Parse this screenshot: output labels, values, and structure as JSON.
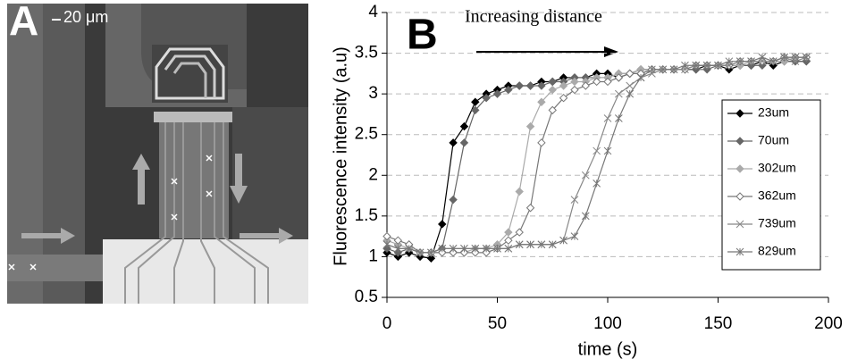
{
  "panel_a": {
    "label": "A",
    "scale_bar": "20 μm"
  },
  "chart_data": {
    "type": "line",
    "panel_label": "B",
    "annotation": "Increasing distance",
    "x_label": "time (s)",
    "y_label": "Fluorescence intensity (a.u)",
    "x": [
      0,
      5,
      10,
      15,
      20,
      25,
      30,
      35,
      40,
      45,
      50,
      55,
      60,
      65,
      70,
      75,
      80,
      85,
      90,
      95,
      100,
      105,
      110,
      115,
      120,
      125,
      130,
      135,
      140,
      145,
      150,
      155,
      160,
      165,
      170,
      175,
      180,
      185,
      190
    ],
    "series": [
      {
        "name": "23um",
        "color": "#000000",
        "marker": "diamond",
        "values": [
          1.05,
          1.0,
          1.05,
          1.0,
          0.98,
          1.4,
          2.4,
          2.6,
          2.9,
          3.0,
          3.05,
          3.1,
          3.1,
          3.1,
          3.15,
          3.15,
          3.2,
          3.2,
          3.2,
          3.25,
          3.25,
          3.2,
          3.25,
          3.3,
          3.3,
          3.3,
          3.3,
          3.3,
          3.3,
          3.35,
          3.35,
          3.3,
          3.35,
          3.35,
          3.4,
          3.35,
          3.4,
          3.4,
          3.4
        ]
      },
      {
        "name": "70um",
        "color": "#666666",
        "marker": "diamond",
        "values": [
          1.1,
          1.05,
          1.1,
          1.05,
          1.05,
          1.1,
          1.7,
          2.4,
          2.8,
          2.95,
          3.0,
          3.05,
          3.1,
          3.1,
          3.1,
          3.15,
          3.15,
          3.2,
          3.2,
          3.2,
          3.2,
          3.25,
          3.25,
          3.25,
          3.3,
          3.3,
          3.3,
          3.3,
          3.3,
          3.3,
          3.35,
          3.35,
          3.35,
          3.35,
          3.35,
          3.4,
          3.4,
          3.4,
          3.4
        ]
      },
      {
        "name": "302um",
        "color": "#aaaaaa",
        "marker": "diamond",
        "values": [
          1.2,
          1.15,
          1.1,
          1.05,
          1.05,
          1.05,
          1.05,
          1.05,
          1.1,
          1.1,
          1.15,
          1.3,
          1.8,
          2.6,
          2.9,
          3.05,
          3.1,
          3.15,
          3.15,
          3.2,
          3.2,
          3.25,
          3.25,
          3.3,
          3.3,
          3.3,
          3.3,
          3.3,
          3.35,
          3.35,
          3.35,
          3.35,
          3.35,
          3.4,
          3.4,
          3.4,
          3.4,
          3.45,
          3.45
        ]
      },
      {
        "name": "362um",
        "color": "#777777",
        "marker": "open-diamond",
        "values": [
          1.25,
          1.2,
          1.15,
          1.05,
          1.05,
          1.05,
          1.05,
          1.05,
          1.05,
          1.05,
          1.1,
          1.2,
          1.3,
          1.6,
          2.4,
          2.8,
          2.95,
          3.05,
          3.1,
          3.15,
          3.15,
          3.2,
          3.25,
          3.25,
          3.3,
          3.3,
          3.3,
          3.3,
          3.35,
          3.35,
          3.35,
          3.35,
          3.4,
          3.4,
          3.4,
          3.4,
          3.45,
          3.45,
          3.45
        ]
      },
      {
        "name": "739um",
        "color": "#888888",
        "marker": "x",
        "values": [
          1.15,
          1.1,
          1.1,
          1.05,
          1.05,
          1.1,
          1.1,
          1.1,
          1.1,
          1.1,
          1.1,
          1.1,
          1.15,
          1.15,
          1.15,
          1.15,
          1.2,
          1.7,
          2.0,
          2.3,
          2.7,
          3.0,
          3.1,
          3.2,
          3.25,
          3.3,
          3.3,
          3.3,
          3.35,
          3.35,
          3.35,
          3.35,
          3.4,
          3.4,
          3.4,
          3.4,
          3.45,
          3.4,
          3.45
        ]
      },
      {
        "name": "829um",
        "color": "#777777",
        "marker": "star",
        "values": [
          1.15,
          1.1,
          1.1,
          1.05,
          1.05,
          1.1,
          1.1,
          1.1,
          1.1,
          1.1,
          1.1,
          1.1,
          1.15,
          1.15,
          1.15,
          1.15,
          1.2,
          1.25,
          1.5,
          1.9,
          2.3,
          2.7,
          3.0,
          3.2,
          3.3,
          3.3,
          3.3,
          3.35,
          3.35,
          3.35,
          3.35,
          3.4,
          3.4,
          3.4,
          3.45,
          3.4,
          3.45,
          3.45,
          3.45
        ]
      }
    ],
    "xlim": [
      0,
      200
    ],
    "xticks": [
      0,
      50,
      100,
      150,
      200
    ],
    "ylim": [
      0.5,
      4
    ],
    "yticks": [
      0.5,
      1,
      1.5,
      2,
      2.5,
      3,
      3.5,
      4
    ],
    "grid": true,
    "legend": "right"
  }
}
